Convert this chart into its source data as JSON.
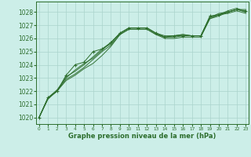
{
  "xlabel": "Graphe pression niveau de la mer (hPa)",
  "ylim": [
    1019.5,
    1028.8
  ],
  "xlim": [
    -0.3,
    23.3
  ],
  "yticks": [
    1020,
    1021,
    1022,
    1023,
    1024,
    1025,
    1026,
    1027,
    1028
  ],
  "xticks": [
    0,
    1,
    2,
    3,
    4,
    5,
    6,
    7,
    8,
    9,
    10,
    11,
    12,
    13,
    14,
    15,
    16,
    17,
    18,
    19,
    20,
    21,
    22,
    23
  ],
  "bg_color": "#cceee8",
  "grid_color": "#aad4cc",
  "line_color": "#2d6e2d",
  "lines": [
    [
      1020.0,
      1021.4,
      1022.0,
      1022.9,
      1023.3,
      1023.8,
      1024.4,
      1025.0,
      1025.5,
      1026.3,
      1026.7,
      1026.7,
      1026.7,
      1026.3,
      1026.1,
      1026.1,
      1026.2,
      1026.2,
      1026.2,
      1027.5,
      1027.7,
      1028.0,
      1028.2,
      1028.2
    ],
    [
      1020.0,
      1021.5,
      1022.1,
      1023.0,
      1023.6,
      1024.1,
      1024.5,
      1025.1,
      1025.7,
      1026.4,
      1026.8,
      1026.8,
      1026.8,
      1026.4,
      1026.2,
      1026.2,
      1026.3,
      1026.2,
      1026.2,
      1027.6,
      1027.8,
      1028.1,
      1028.3,
      1028.0
    ],
    [
      1020.0,
      1021.5,
      1022.0,
      1022.8,
      1023.2,
      1023.7,
      1024.1,
      1024.7,
      1025.4,
      1026.3,
      1026.7,
      1026.7,
      1026.7,
      1026.3,
      1026.0,
      1026.0,
      1026.1,
      1026.1,
      1026.1,
      1027.5,
      1027.8,
      1027.9,
      1028.1,
      1027.9
    ],
    [
      1020.0,
      1021.5,
      1022.0,
      1023.1,
      1023.5,
      1024.0,
      1024.6,
      1025.2,
      1025.6,
      1026.4,
      1026.8,
      1026.8,
      1026.8,
      1026.4,
      1026.1,
      1026.2,
      1026.3,
      1026.2,
      1026.2,
      1027.6,
      1027.9,
      1028.0,
      1028.2,
      1028.0
    ],
    [
      1020.0,
      1021.5,
      1022.0,
      1023.2,
      1024.0,
      1024.2,
      1025.0,
      1025.2,
      1025.7,
      1026.4,
      1026.8,
      1026.8,
      1026.8,
      1026.4,
      1026.1,
      1026.2,
      1026.2,
      1026.2,
      1026.2,
      1027.7,
      1027.8,
      1028.0,
      1028.2,
      1028.1
    ]
  ],
  "has_markers": [
    false,
    false,
    false,
    false,
    true
  ],
  "xlabel_fontsize": 6.0,
  "ytick_fontsize": 5.5,
  "xtick_fontsize": 4.2
}
